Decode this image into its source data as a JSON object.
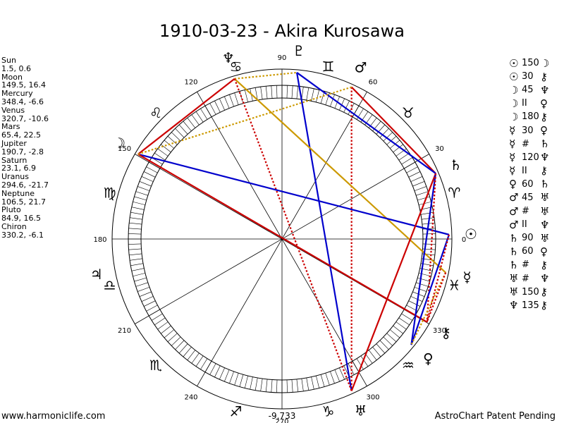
{
  "title": "1910-03-23 - Akira Kurosawa",
  "planets": [
    {
      "key": "sun",
      "name": "Sun",
      "glyph": "☉",
      "lon": 1.5,
      "lat": 0.6,
      "pos": "1.5, 0.6"
    },
    {
      "key": "moon",
      "name": "Moon",
      "glyph": "☽",
      "lon": 149.5,
      "lat": 16.4,
      "pos": "149.5, 16.4"
    },
    {
      "key": "mercury",
      "name": "Mercury",
      "glyph": "☿",
      "lon": 348.4,
      "lat": -6.6,
      "pos": "348.4, -6.6"
    },
    {
      "key": "venus",
      "name": "Venus",
      "glyph": "♀",
      "lon": 320.7,
      "lat": -10.6,
      "pos": "320.7, -10.6"
    },
    {
      "key": "mars",
      "name": "Mars",
      "glyph": "♂",
      "lon": 65.4,
      "lat": 22.5,
      "pos": "65.4, 22.5"
    },
    {
      "key": "jupiter",
      "name": "Jupiter",
      "glyph": "♃",
      "lon": 190.7,
      "lat": -2.8,
      "pos": "190.7, -2.8"
    },
    {
      "key": "saturn",
      "name": "Saturn",
      "glyph": "♄",
      "lon": 23.1,
      "lat": 6.9,
      "pos": "23.1, 6.9"
    },
    {
      "key": "uranus",
      "name": "Uranus",
      "glyph": "♅",
      "lon": 294.6,
      "lat": -21.7,
      "pos": "294.6, -21.7"
    },
    {
      "key": "neptune",
      "name": "Neptune",
      "glyph": "♆",
      "lon": 106.5,
      "lat": 21.7,
      "pos": "106.5, 21.7"
    },
    {
      "key": "pluto",
      "name": "Pluto",
      "glyph": "♇",
      "lon": 84.9,
      "lat": 16.5,
      "pos": "84.9, 16.5"
    },
    {
      "key": "chiron",
      "name": "Chiron",
      "glyph": "⚷",
      "lon": 330.2,
      "lat": -6.1,
      "pos": "330.2, -6.1"
    }
  ],
  "aspects": [
    {
      "p1": "☉",
      "angle": "150",
      "p2": "☽",
      "from": "sun",
      "to": "moon",
      "color": "#cc9900",
      "style": "solid"
    },
    {
      "p1": "☉",
      "angle": "30",
      "p2": "⚷",
      "from": "sun",
      "to": "chiron",
      "color": "#cc9900",
      "style": "dotted"
    },
    {
      "p1": "☽",
      "angle": "45",
      "p2": "♆",
      "from": "moon",
      "to": "neptune",
      "color": "#cc9900",
      "style": "dotted"
    },
    {
      "p1": "☽",
      "angle": "II",
      "p2": "♀",
      "from": "moon",
      "to": "venus",
      "color": "#cc0000",
      "style": "dotted"
    },
    {
      "p1": "☽",
      "angle": "180",
      "p2": "⚷",
      "from": "moon",
      "to": "chiron",
      "color": "#cc0000",
      "style": "solid"
    },
    {
      "p1": "☿",
      "angle": "30",
      "p2": "♀",
      "from": "mercury",
      "to": "venus",
      "color": "#cc9900",
      "style": "dotted"
    },
    {
      "p1": "☿",
      "angle": "#",
      "p2": "♄",
      "from": "mercury",
      "to": "saturn",
      "color": "#cc0000",
      "style": "dotted"
    },
    {
      "p1": "☿",
      "angle": "120",
      "p2": "♆",
      "from": "mercury",
      "to": "neptune",
      "color": "#0000cc",
      "style": "solid"
    },
    {
      "p1": "☿",
      "angle": "II",
      "p2": "⚷",
      "from": "mercury",
      "to": "chiron",
      "color": "#cc0000",
      "style": "dotted"
    },
    {
      "p1": "♀",
      "angle": "60",
      "p2": "♄",
      "from": "venus",
      "to": "saturn",
      "color": "#0000cc",
      "style": "solid"
    },
    {
      "p1": "♂",
      "angle": "45",
      "p2": "♅",
      "from": "mars",
      "to": "uranus",
      "color": "#cc0000",
      "style": "dotted"
    },
    {
      "p1": "♂",
      "angle": "#",
      "p2": "♅",
      "from": "mars",
      "to": "uranus",
      "color": "#cc0000",
      "style": "dotted"
    },
    {
      "p1": "♂",
      "angle": "II",
      "p2": "♆",
      "from": "mars",
      "to": "neptune",
      "color": "#cc9900",
      "style": "dotted"
    },
    {
      "p1": "♄",
      "angle": "90",
      "p2": "♅",
      "from": "saturn",
      "to": "uranus",
      "color": "#cc0000",
      "style": "solid"
    },
    {
      "p1": "♄",
      "angle": "60",
      "p2": "♀",
      "from": "saturn",
      "to": "venus",
      "color": "#0000cc",
      "style": "solid"
    },
    {
      "p1": "♄",
      "angle": "#",
      "p2": "⚷",
      "from": "saturn",
      "to": "chiron",
      "color": "#cc0000",
      "style": "dotted"
    },
    {
      "p1": "♅",
      "angle": "#",
      "p2": "♆",
      "from": "uranus",
      "to": "neptune",
      "color": "#cc0000",
      "style": "dotted"
    },
    {
      "p1": "♅",
      "angle": "150",
      "p2": "⚷",
      "from": "uranus",
      "to": "chiron",
      "color": "#0000cc",
      "style": "solid"
    },
    {
      "p1": "♆",
      "angle": "135",
      "p2": "⚷",
      "from": "neptune",
      "to": "chiron",
      "color": "#cc0000",
      "style": "solid"
    }
  ],
  "chart_lines": [
    {
      "from": "mars",
      "to": "uranus",
      "color": "#cc0000",
      "style": "dotted"
    },
    {
      "from": "mars",
      "to": "saturn",
      "color": "#cc0000",
      "style": "solid"
    },
    {
      "from": "pluto",
      "to": "uranus",
      "color": "#0000cc",
      "style": "solid"
    },
    {
      "from": "pluto",
      "to": "saturn",
      "color": "#0000cc",
      "style": "solid"
    },
    {
      "from": "neptune",
      "to": "pluto",
      "color": "#cc9900",
      "style": "dotted"
    },
    {
      "from": "neptune",
      "to": "moon",
      "color": "#cc0000",
      "style": "solid"
    },
    {
      "from": "neptune",
      "to": "mercury",
      "color": "#cc9900",
      "style": "solid"
    },
    {
      "from": "neptune",
      "to": "uranus",
      "color": "#cc0000",
      "style": "dotted"
    },
    {
      "from": "moon",
      "to": "sun",
      "color": "#0000cc",
      "style": "solid"
    },
    {
      "from": "moon",
      "to": "chiron",
      "color": "#cc0000",
      "style": "solid"
    },
    {
      "from": "moon",
      "to": "mars",
      "color": "#cc9900",
      "style": "dotted"
    },
    {
      "from": "saturn",
      "to": "uranus",
      "color": "#cc0000",
      "style": "solid"
    },
    {
      "from": "saturn",
      "to": "venus",
      "color": "#0000cc",
      "style": "solid"
    },
    {
      "from": "saturn",
      "to": "chiron",
      "color": "#cc0000",
      "style": "dotted"
    },
    {
      "from": "sun",
      "to": "venus",
      "color": "#0000cc",
      "style": "solid"
    },
    {
      "from": "sun",
      "to": "chiron",
      "color": "#cc0000",
      "style": "dotted"
    },
    {
      "from": "mercury",
      "to": "venus",
      "color": "#cc9900",
      "style": "dotted"
    },
    {
      "from": "mercury",
      "to": "chiron",
      "color": "#cc0000",
      "style": "dotted"
    }
  ],
  "degree_labels": [
    {
      "deg": 0,
      "text": "0"
    },
    {
      "deg": 30,
      "text": "30"
    },
    {
      "deg": 60,
      "text": "60"
    },
    {
      "deg": 90,
      "text": "90"
    },
    {
      "deg": 120,
      "text": "120"
    },
    {
      "deg": 150,
      "text": "150"
    },
    {
      "deg": 180,
      "text": "180"
    },
    {
      "deg": 210,
      "text": "210"
    },
    {
      "deg": 240,
      "text": "240"
    },
    {
      "deg": 270,
      "text": "270"
    },
    {
      "deg": 300,
      "text": "300"
    },
    {
      "deg": 330,
      "text": "330"
    }
  ],
  "signs": [
    "♈",
    "♉",
    "♊",
    "♋",
    "♌",
    "♍",
    "♎",
    "♏",
    "♐",
    "♑",
    "♒",
    "♓"
  ],
  "bottom_value": "-9,733",
  "footer_left": "www.harmoniclife.com",
  "footer_right": "AstroChart Patent Pending",
  "colors": {
    "red": "#cc0000",
    "blue": "#0000cc",
    "gold": "#cc9900"
  }
}
